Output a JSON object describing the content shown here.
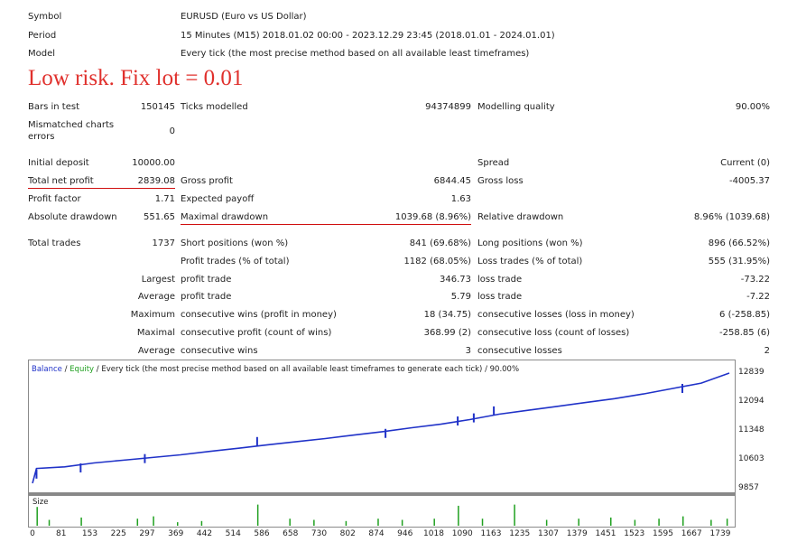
{
  "header": {
    "symbol_label": "Symbol",
    "symbol_value": "EURUSD (Euro vs US Dollar)",
    "period_label": "Period",
    "period_value": "15 Minutes (M15) 2018.01.02 00:00 - 2023.12.29 23:45 (2018.01.01 - 2024.01.01)",
    "model_label": "Model",
    "model_value": "Every tick (the most precise method based on all available least timeframes)"
  },
  "heading": "Low risk. Fix lot = 0.01",
  "stats": {
    "bars_label": "Bars in test",
    "bars_value": "150145",
    "ticks_label": "Ticks modelled",
    "ticks_value": "94374899",
    "quality_label": "Modelling quality",
    "quality_value": "90.00%",
    "mismatch_label_1": "Mismatched charts",
    "mismatch_label_2": "errors",
    "mismatch_value": "0",
    "deposit_label": "Initial deposit",
    "deposit_value": "10000.00",
    "spread_label": "Spread",
    "spread_value": "Current (0)",
    "netprofit_label": "Total net profit",
    "netprofit_value": "2839.08",
    "grossprofit_label": "Gross profit",
    "grossprofit_value": "6844.45",
    "grossloss_label": "Gross loss",
    "grossloss_value": "-4005.37",
    "pf_label": "Profit factor",
    "pf_value": "1.71",
    "payoff_label": "Expected payoff",
    "payoff_value": "1.63",
    "absdd_label": "Absolute drawdown",
    "absdd_value": "551.65",
    "maxdd_label": "Maximal drawdown",
    "maxdd_value": "1039.68 (8.96%)",
    "reldd_label": "Relative drawdown",
    "reldd_value": "8.96% (1039.68)",
    "trades_label": "Total trades",
    "trades_value": "1737",
    "short_label": "Short positions (won %)",
    "short_value": "841 (69.68%)",
    "long_label": "Long positions (won %)",
    "long_value": "896 (66.52%)",
    "ptrades_label": "Profit trades (% of total)",
    "ptrades_value": "1182 (68.05%)",
    "ltrades_label": "Loss trades (% of total)",
    "ltrades_value": "555 (31.95%)",
    "largest_label": "Largest",
    "largest_profit_label": "profit trade",
    "largest_profit_value": "346.73",
    "largest_loss_label": "loss trade",
    "largest_loss_value": "-73.22",
    "average_label": "Average",
    "average_profit_label": "profit trade",
    "average_profit_value": "5.79",
    "average_loss_label": "loss trade",
    "average_loss_value": "-7.22",
    "maximum_label": "Maximum",
    "max_wins_label": "consecutive wins (profit in money)",
    "max_wins_value": "18 (34.75)",
    "max_losses_label": "consecutive losses (loss in money)",
    "max_losses_value": "6 (-258.85)",
    "maximal_label": "Maximal",
    "mxl_profit_label": "consecutive profit (count of wins)",
    "mxl_profit_value": "368.99 (2)",
    "mxl_loss_label": "consecutive loss (count of losses)",
    "mxl_loss_value": "-258.85 (6)",
    "avg2_label": "Average",
    "avg_wins_label": "consecutive wins",
    "avg_wins_value": "3",
    "avg_losses_label": "consecutive losses",
    "avg_losses_value": "2"
  },
  "chart_legend": {
    "balance": "Balance",
    "sep": " / ",
    "equity": "Equity",
    "rest": " / Every tick (the most precise method based on all available least timeframes to generate each tick) / 90.00%"
  },
  "volume_label": "Size",
  "colors": {
    "balance": "#2032c8",
    "equity": "#20a020",
    "underline": "#d01010",
    "heading": "#e0302c"
  },
  "chart_data": {
    "type": "line",
    "x_ticks": [
      "0",
      "81",
      "153",
      "225",
      "297",
      "369",
      "442",
      "514",
      "586",
      "658",
      "730",
      "802",
      "874",
      "946",
      "1018",
      "1090",
      "1163",
      "1235",
      "1307",
      "1379",
      "1451",
      "1523",
      "1595",
      "1667",
      "1739"
    ],
    "y_ticks": [
      "12839",
      "12094",
      "11348",
      "10603",
      "9857"
    ],
    "ylim": [
      9857,
      12839
    ],
    "xlim": [
      0,
      1737
    ],
    "series": [
      {
        "name": "Balance",
        "points": [
          [
            0,
            10000
          ],
          [
            10,
            10380
          ],
          [
            80,
            10420
          ],
          [
            153,
            10520
          ],
          [
            225,
            10590
          ],
          [
            297,
            10660
          ],
          [
            369,
            10730
          ],
          [
            442,
            10820
          ],
          [
            514,
            10900
          ],
          [
            586,
            10990
          ],
          [
            658,
            11070
          ],
          [
            730,
            11150
          ],
          [
            802,
            11240
          ],
          [
            874,
            11330
          ],
          [
            946,
            11430
          ],
          [
            1018,
            11520
          ],
          [
            1090,
            11640
          ],
          [
            1163,
            11780
          ],
          [
            1235,
            11880
          ],
          [
            1307,
            11980
          ],
          [
            1379,
            12080
          ],
          [
            1451,
            12180
          ],
          [
            1523,
            12300
          ],
          [
            1595,
            12440
          ],
          [
            1667,
            12580
          ],
          [
            1737,
            12839
          ]
        ]
      }
    ],
    "equity_spikes": [
      [
        10,
        10350
      ],
      [
        120,
        10510
      ],
      [
        280,
        10750
      ],
      [
        560,
        11190
      ],
      [
        880,
        11400
      ],
      [
        1060,
        11720
      ],
      [
        1100,
        11800
      ],
      [
        1150,
        11980
      ],
      [
        1620,
        12560
      ]
    ],
    "volume_x": [
      10,
      40,
      120,
      260,
      300,
      360,
      420,
      560,
      640,
      700,
      780,
      860,
      920,
      1000,
      1060,
      1120,
      1200,
      1280,
      1360,
      1440,
      1500,
      1560,
      1620,
      1690,
      1730
    ],
    "volume_h": [
      0.8,
      0.25,
      0.35,
      0.3,
      0.4,
      0.15,
      0.2,
      0.9,
      0.3,
      0.25,
      0.2,
      0.3,
      0.25,
      0.3,
      0.85,
      0.3,
      0.9,
      0.25,
      0.3,
      0.35,
      0.25,
      0.3,
      0.4,
      0.25,
      0.3
    ]
  }
}
